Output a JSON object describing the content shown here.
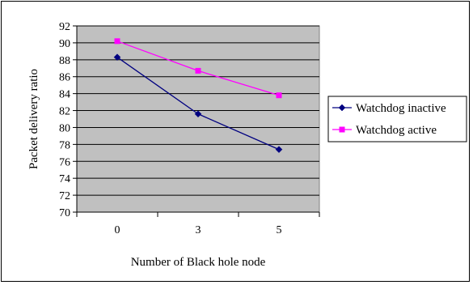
{
  "chart_data": {
    "type": "line",
    "title": "",
    "xlabel": "Number of Black hole node",
    "ylabel": "Packet delivery ratio",
    "categories": [
      "0",
      "3",
      "5"
    ],
    "ylim": [
      70,
      92
    ],
    "ystep": 2,
    "grid": true,
    "plot_background": "#c0c0c0",
    "legend_position": "right",
    "series": [
      {
        "name": "Watchdog inactive",
        "values": [
          88.3,
          81.6,
          77.4
        ],
        "color": "#000080",
        "marker": "diamond"
      },
      {
        "name": "Watchdog active",
        "values": [
          90.2,
          86.7,
          83.8
        ],
        "color": "#ff00ff",
        "marker": "square"
      }
    ]
  }
}
